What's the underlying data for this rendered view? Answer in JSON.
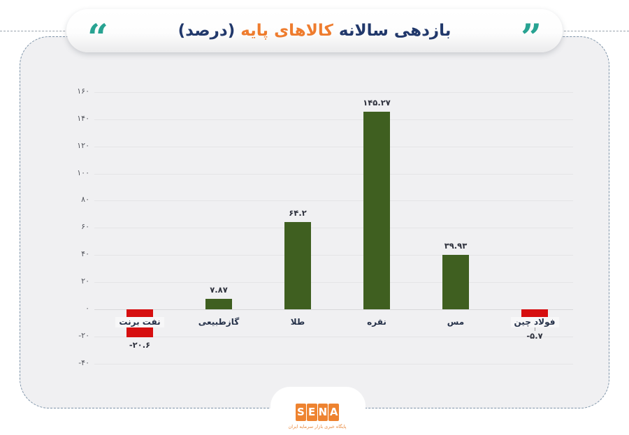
{
  "header": {
    "title_part1": "بازدهی سالانه",
    "title_part2": "کالاهای پایه",
    "title_part3": "(درصد)",
    "open_quote": "“",
    "close_quote": "”"
  },
  "colors": {
    "navy": "#21386b",
    "orange": "#ee7c2e",
    "teal": "#28a392",
    "bar_green": "#3f5f20",
    "bar_red": "#d60f10",
    "card_bg": "#f0f0f2",
    "card_border": "#7d93a8",
    "grid": "#e4e4e6",
    "grid_zero": "#d7d7da",
    "tick_text": "#55575f",
    "value_text": "#2e313d",
    "category_text": "#253149",
    "logo_orange": "#ee8330"
  },
  "chart_data": {
    "type": "bar",
    "title": "بازدهی سالانه کالاهای پایه (درصد)",
    "xlabel": "",
    "ylabel": "",
    "ylim": [
      -40,
      160
    ],
    "grid": true,
    "categories": [
      "نفت برنت",
      "گازطبیعی",
      "طلا",
      "نقره",
      "مس",
      "فولاد چین"
    ],
    "values": [
      -20.6,
      7.87,
      64.2,
      145.27,
      39.93,
      -5.7
    ],
    "value_labels": [
      "-۲۰.۶",
      "۷.۸۷",
      "۶۴.۲",
      "۱۴۵.۲۷",
      "۳۹.۹۳",
      "-۵.۷"
    ],
    "y_ticks": [
      {
        "value": 160,
        "label": "۱۶۰"
      },
      {
        "value": 140,
        "label": "۱۴۰"
      },
      {
        "value": 120,
        "label": "۱۲۰"
      },
      {
        "value": 100,
        "label": "۱۰۰"
      },
      {
        "value": 80,
        "label": "۸۰"
      },
      {
        "value": 60,
        "label": "۶۰"
      },
      {
        "value": 40,
        "label": "۴۰"
      },
      {
        "value": 20,
        "label": "۲۰"
      },
      {
        "value": 0,
        "label": "۰"
      },
      {
        "value": -20,
        "label": "-۲۰"
      },
      {
        "value": -40,
        "label": "-۴۰"
      }
    ]
  },
  "footer": {
    "logo_text": "SENA",
    "logo_letters": [
      "S",
      "E",
      "N",
      "A"
    ],
    "tagline": "پایگاه خبری بازار سرمایه ایران"
  }
}
